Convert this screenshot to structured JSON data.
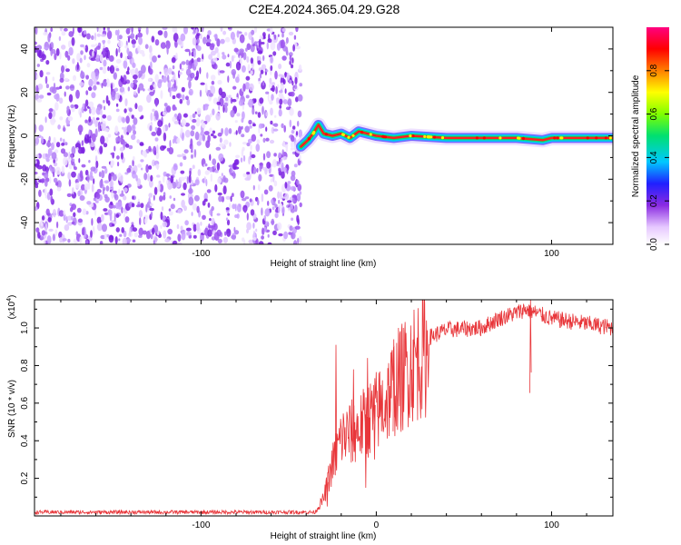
{
  "title": "C2E4.2024.365.04.29.G28",
  "chart_data": [
    {
      "type": "heatmap",
      "xlabel": "Height of straight line (km)",
      "ylabel": "Frequency (Hz)",
      "xlim": [
        -195,
        135
      ],
      "ylim": [
        -50,
        50
      ],
      "x_ticks": [
        -100,
        100
      ],
      "y_ticks": [
        -40,
        -20,
        0,
        20,
        40
      ],
      "noise_region_x": [
        -195,
        -43
      ],
      "trace": [
        {
          "x": -43,
          "y": -5
        },
        {
          "x": -39,
          "y": -2
        },
        {
          "x": -36,
          "y": 1
        },
        {
          "x": -33,
          "y": 5
        },
        {
          "x": -30,
          "y": 1
        },
        {
          "x": -25,
          "y": 0
        },
        {
          "x": -20,
          "y": 1
        },
        {
          "x": -15,
          "y": -1
        },
        {
          "x": -10,
          "y": 2
        },
        {
          "x": -5,
          "y": 1
        },
        {
          "x": 0,
          "y": 0
        },
        {
          "x": 10,
          "y": -1
        },
        {
          "x": 20,
          "y": 0
        },
        {
          "x": 40,
          "y": -1
        },
        {
          "x": 60,
          "y": -1
        },
        {
          "x": 80,
          "y": -1
        },
        {
          "x": 95,
          "y": -2
        },
        {
          "x": 100,
          "y": -1
        },
        {
          "x": 135,
          "y": -1
        }
      ],
      "colorbar": {
        "label": "Normalized spectral amplitude",
        "range": [
          0,
          1
        ],
        "ticks": [
          {
            "v": 0.0,
            "label": "0.0"
          },
          {
            "v": 0.2,
            "label": "0.2"
          },
          {
            "v": 0.4,
            "label": "0.4"
          },
          {
            "v": 0.6,
            "label": "0.6"
          },
          {
            "v": 0.8,
            "label": "0.8"
          }
        ]
      }
    },
    {
      "type": "line",
      "xlabel": "Height of straight line (km)",
      "ylabel": "SNR (10 * v/v)",
      "scale_label": "(x10",
      "scale_exp": "4",
      "scale_close": ")",
      "xlim": [
        -195,
        135
      ],
      "ylim": [
        0,
        1.15
      ],
      "x_ticks": [
        -100,
        0,
        100
      ],
      "y_ticks": [
        {
          "v": 0.2,
          "label": "0.2"
        },
        {
          "v": 0.4,
          "label": "0.4"
        },
        {
          "v": 0.6,
          "label": "0.6"
        },
        {
          "v": 0.8,
          "label": "0.8"
        },
        {
          "v": 1.0,
          "label": "1.0"
        }
      ],
      "color": "#e8363a",
      "envelope": [
        [
          -195,
          0.02
        ],
        [
          -35,
          0.02
        ],
        [
          -30,
          0.1
        ],
        [
          -25,
          0.3
        ],
        [
          -20,
          0.45
        ],
        [
          -10,
          0.5
        ],
        [
          -5,
          0.55
        ],
        [
          0,
          0.6
        ],
        [
          5,
          0.65
        ],
        [
          10,
          0.75
        ],
        [
          15,
          0.8
        ],
        [
          20,
          0.88
        ],
        [
          30,
          0.95
        ],
        [
          40,
          0.99
        ],
        [
          60,
          1.0
        ],
        [
          70,
          1.05
        ],
        [
          80,
          1.08
        ],
        [
          85,
          1.1
        ],
        [
          100,
          1.05
        ],
        [
          115,
          1.03
        ],
        [
          135,
          1.0
        ]
      ],
      "spikes": [
        {
          "x": -23,
          "y": 0.91
        },
        {
          "x": -13,
          "y": 0.78
        },
        {
          "x": -5,
          "y": 0.84
        },
        {
          "x": 10,
          "y": 0.94
        },
        {
          "x": 88,
          "y": 1.15
        }
      ],
      "dips": [
        {
          "x": -28,
          "y": 0.05
        },
        {
          "x": -6,
          "y": 0.15
        },
        {
          "x": -1,
          "y": 0.3
        }
      ]
    }
  ]
}
